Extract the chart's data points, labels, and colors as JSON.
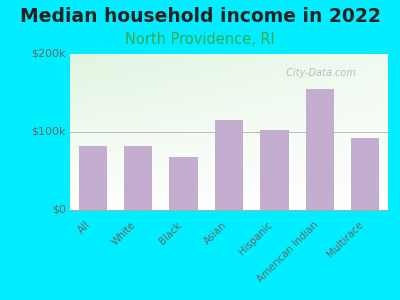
{
  "title": "Median household income in 2022",
  "subtitle": "North Providence, RI",
  "categories": [
    "All",
    "White",
    "Black",
    "Asian",
    "Hispanic",
    "American Indian",
    "Multirace"
  ],
  "values": [
    82000,
    82000,
    68000,
    115000,
    102000,
    155000,
    92000
  ],
  "bar_color": "#c4aed0",
  "background_color": "#00eeff",
  "ylim": [
    0,
    200000
  ],
  "ytick_labels": [
    "$0",
    "$100k",
    "$200k"
  ],
  "ytick_vals": [
    0,
    100000,
    200000
  ],
  "title_fontsize": 13.5,
  "subtitle_fontsize": 10.5,
  "subtitle_color": "#33aa55",
  "watermark": "  City-Data.com"
}
